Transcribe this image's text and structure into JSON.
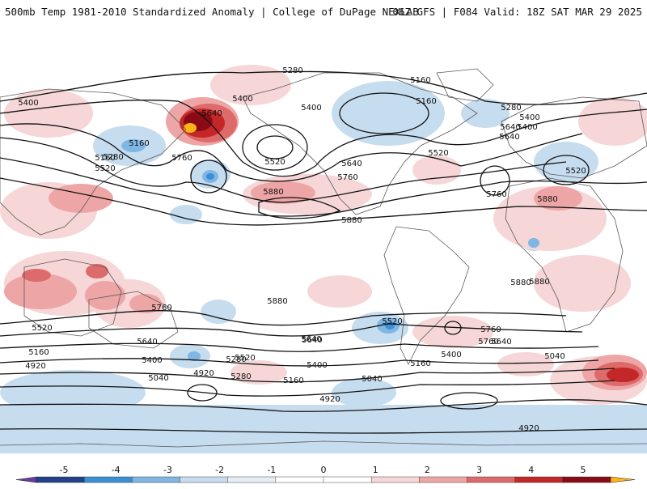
{
  "header": {
    "title_left": "500mb Temp 1981-2010 Standardized Anomaly | College of DuPage NEXLAB",
    "title_right": "06Z GFS | F084 Valid: 18Z SAT MAR 29 2025"
  },
  "legend": {
    "ticks": [
      "-5",
      "-4",
      "-3",
      "-2",
      "-1",
      "0",
      "1",
      "2",
      "3",
      "4",
      "5"
    ],
    "colors": [
      "#6a3d9a",
      "#24428a",
      "#3a8fd6",
      "#7fb6e3",
      "#c6dcef",
      "#e4eef7",
      "#ffffff",
      "#ffffff",
      "#f6d6d6",
      "#eea5a5",
      "#dd6b6b",
      "#c42727",
      "#8a0b16",
      "#fbb516"
    ]
  },
  "map": {
    "contour_labels": [
      "5280",
      "5160",
      "5400",
      "5400",
      "5160",
      "5280",
      "5400",
      "5640",
      "5400",
      "5160",
      "5400",
      "5640",
      "5640",
      "5520",
      "5160",
      "5760",
      "5280",
      "5520",
      "5520",
      "5640",
      "5760",
      "5520",
      "5880",
      "5760",
      "5880",
      "5880",
      "5880",
      "5880",
      "5760",
      "5880",
      "5520",
      "5520",
      "5640",
      "5760",
      "5640",
      "5760",
      "5640",
      "5160",
      "5400",
      "5640",
      "5400",
      "5040",
      "5280",
      "5160",
      "4920",
      "5520",
      "5040",
      "4920",
      "5400",
      "5280",
      "5160",
      "5040",
      "4920",
      "4920"
    ],
    "colors": {
      "land": "#5a5a5a",
      "contour": "#111111",
      "warm_light": "#f6d6d6",
      "warm_med": "#eea5a5",
      "warm_strong": "#dd6b6b",
      "warm_deep": "#c42727",
      "warm_extreme": "#8a0b16",
      "cold_light": "#c6dcef",
      "cold_med": "#7fb6e3",
      "cold_strong": "#3a8fd6"
    }
  }
}
